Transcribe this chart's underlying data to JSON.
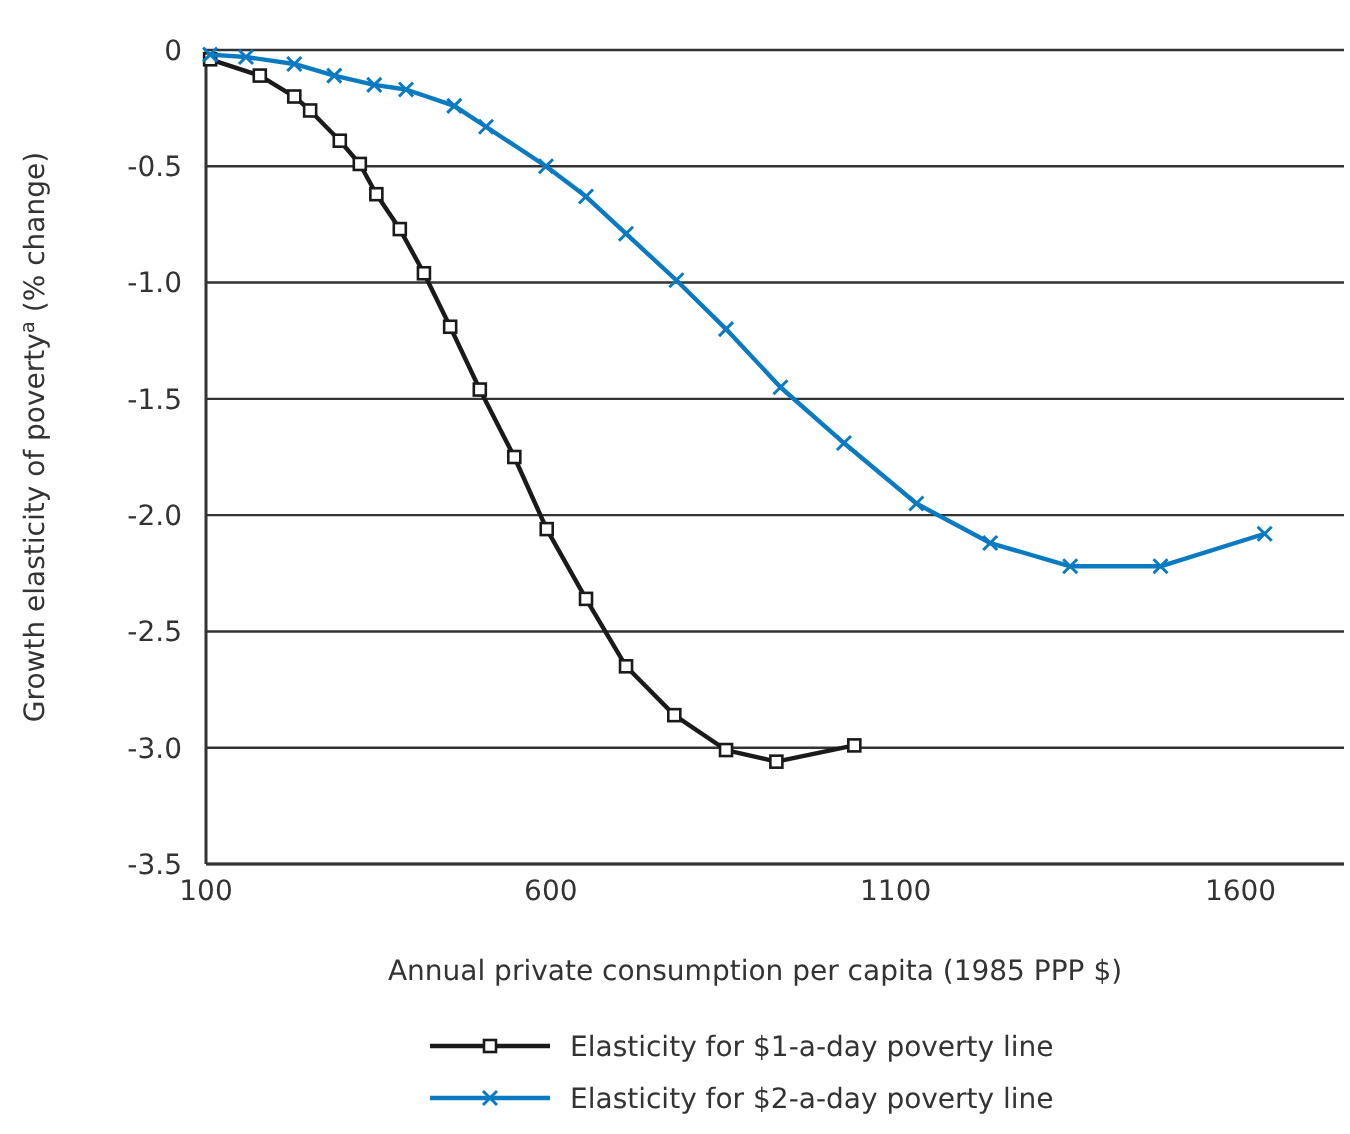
{
  "chart_data": {
    "type": "line",
    "xlabel": "Annual private consumption per capita (1985 PPP $)",
    "ylabel": "Growth elasticity of poverty$^{a}$ (% change)",
    "xlim": [
      100,
      1750
    ],
    "xticks": [
      100,
      600,
      1100,
      1600
    ],
    "ylim": [
      -3.5,
      0
    ],
    "yticks": [
      0,
      {
        "value": -0.5,
        "label": "-0.5"
      },
      {
        "value": -1,
        "label": "-1.0"
      },
      {
        "value": -1.5,
        "label": "-1.5"
      },
      {
        "value": -2,
        "label": "-2.0"
      },
      {
        "value": -2.5,
        "label": "-2.5"
      },
      {
        "value": -3,
        "label": "-3.0"
      },
      {
        "value": -3.5,
        "label": "-3.5"
      }
    ],
    "grid": "y",
    "legend": "bottom",
    "line_style": "solid",
    "series": [
      {
        "name": "Elasticity for $1-a-day poverty line",
        "color": "#1a1a1a",
        "marker": "square",
        "x": [
          106,
          178,
          228,
          251,
          294,
          323,
          347,
          381,
          416,
          454,
          497,
          547,
          594,
          651,
          709,
          779,
          854,
          927,
          1040
        ],
        "values": [
          -0.04,
          -0.11,
          -0.2,
          -0.26,
          -0.39,
          -0.49,
          -0.62,
          -0.77,
          -0.96,
          -1.19,
          -1.46,
          -1.75,
          -2.06,
          -2.36,
          -2.65,
          -2.86,
          -3.01,
          -3.06,
          -2.99
        ]
      },
      {
        "name": "Elasticity for $2-a-day poverty line",
        "color": "#0a7ac2",
        "marker": "cross",
        "x": [
          106,
          158,
          228,
          286,
          344,
          390,
          460,
          506,
          593,
          651,
          709,
          782,
          854,
          933,
          1025,
          1130,
          1237,
          1353,
          1484,
          1635
        ],
        "values": [
          -0.02,
          -0.03,
          -0.06,
          -0.11,
          -0.15,
          -0.17,
          -0.24,
          -0.33,
          -0.5,
          -0.63,
          -0.79,
          -0.99,
          -1.2,
          -1.45,
          -1.69,
          -1.95,
          -2.12,
          -2.22,
          -2.22,
          -2.08
        ]
      }
    ]
  }
}
